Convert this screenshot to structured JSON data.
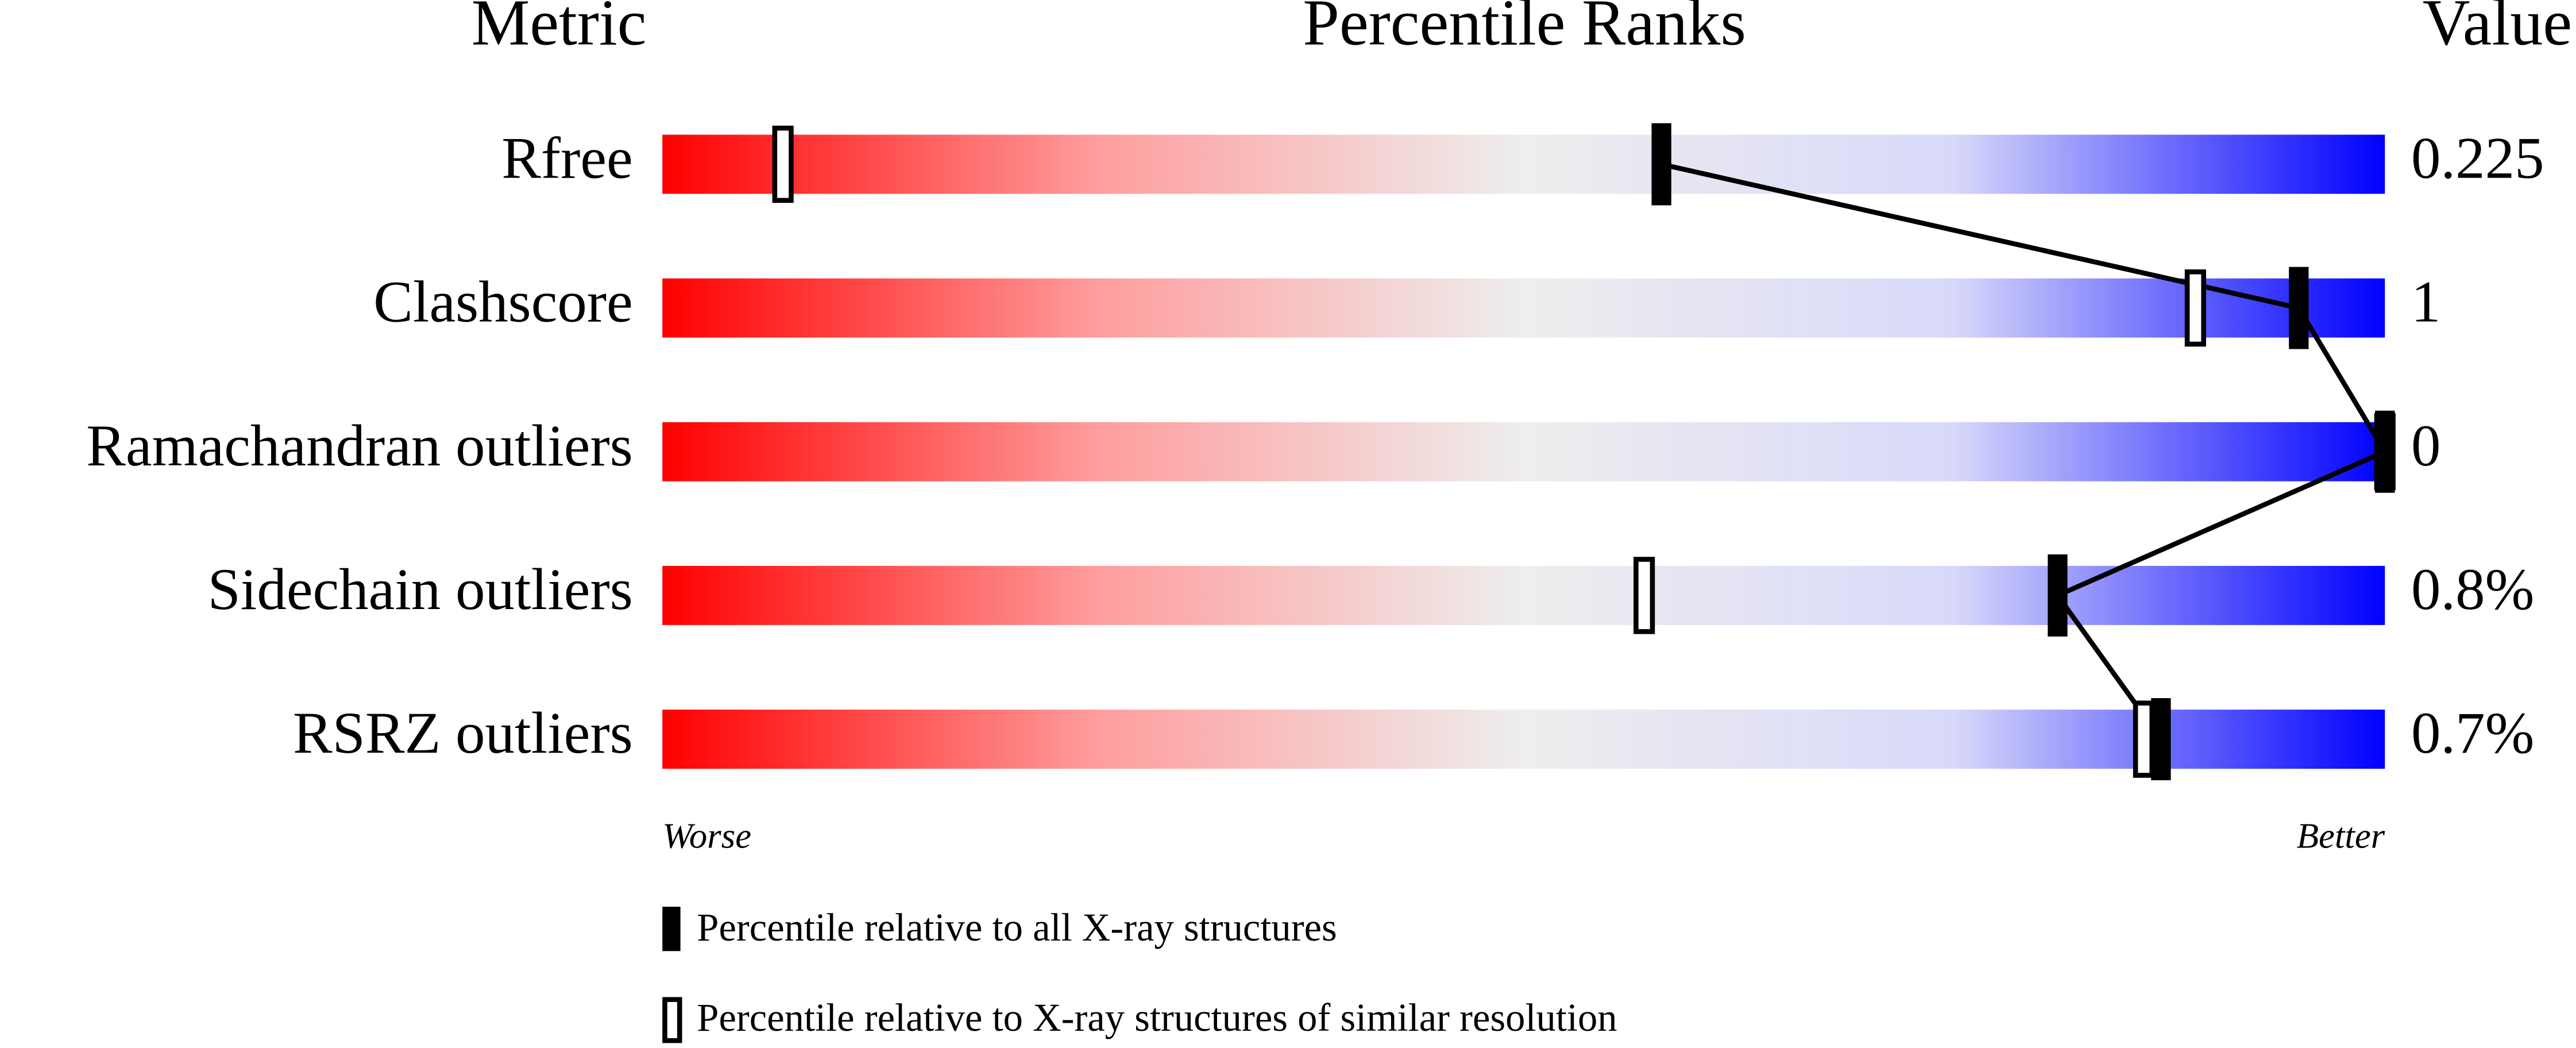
{
  "chart_data": {
    "type": "percentile",
    "headers": [
      "Metric",
      "Percentile Ranks",
      "Value"
    ],
    "categories": [
      "Rfree",
      "Clashscore",
      "Ramachandran outliers",
      "Sidechain outliers",
      "RSRZ outliers"
    ],
    "value_texts": [
      "0.225",
      "1",
      "0",
      "0.8%",
      "0.7%"
    ],
    "series": [
      {
        "name": "Percentile relative to all X-ray structures",
        "color": "#000000",
        "values": [
          58,
          95,
          100,
          81,
          87
        ]
      },
      {
        "name": "Percentile relative to X-ray structures of similar resolution",
        "color": "#ffffff",
        "values": [
          7,
          89,
          100,
          57,
          86
        ]
      }
    ],
    "xlim": [
      0,
      100
    ],
    "axis_labels": [
      "Worse",
      "Better"
    ]
  }
}
